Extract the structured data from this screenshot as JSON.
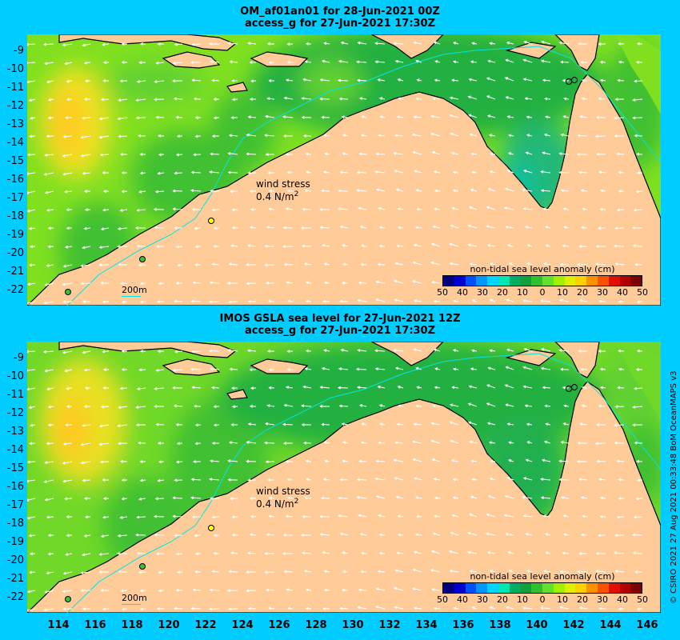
{
  "panels": [
    {
      "title_line1": "OM_af01an01 for 28-Jun-2021 00Z",
      "title_line2": "access_g for 27-Jun-2021 17:30Z",
      "legend_title": "non-tidal sea level anomaly (cm)",
      "wind_label": "wind stress",
      "wind_value": "0.4 N/m",
      "wind_exp": "2",
      "scale_label": "200m"
    },
    {
      "title_line1": "IMOS GSLA sea level  for 27-Jun-2021 12Z",
      "title_line2": "access_g for 27-Jun-2021 17:30Z",
      "legend_title": "non-tidal sea level anomaly (cm)",
      "wind_label": "wind stress",
      "wind_value": "0.4 N/m",
      "wind_exp": "2",
      "scale_label": "200m"
    }
  ],
  "y_ticks": [
    "-9",
    "-10",
    "-11",
    "-12",
    "-13",
    "-14",
    "-15",
    "-16",
    "-17",
    "-18",
    "-19",
    "-20",
    "-21",
    "-22"
  ],
  "x_ticks": [
    "114",
    "116",
    "118",
    "120",
    "122",
    "124",
    "126",
    "128",
    "130",
    "132",
    "134",
    "136",
    "138",
    "140",
    "142",
    "144",
    "146"
  ],
  "colorbar_labels": [
    "50",
    "40",
    "30",
    "20",
    "10",
    "0",
    "10",
    "20",
    "30",
    "40",
    "50"
  ],
  "colorbar_colors": [
    "#00007f",
    "#0000d0",
    "#0050ff",
    "#0099ff",
    "#00d5ff",
    "#00e8b0",
    "#00b060",
    "#10a040",
    "#30c030",
    "#60e030",
    "#a0f000",
    "#e0f000",
    "#ffd000",
    "#ff9000",
    "#ff5000",
    "#e01000",
    "#b00000",
    "#800000"
  ],
  "credit": "© CSIRO 2021    27 Aug 2021 00:33:48 BoM OceanMAPS v3"
}
